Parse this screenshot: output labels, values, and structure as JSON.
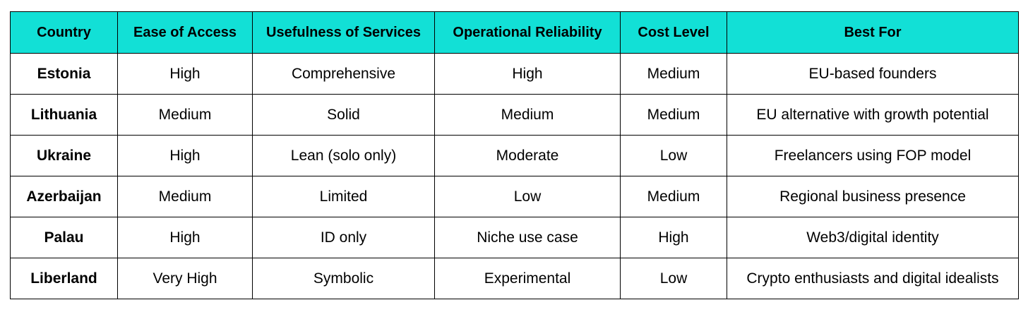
{
  "colors": {
    "header_background": "#12e0d6",
    "border": "#000000",
    "text": "#000000",
    "cell_background": "#ffffff"
  },
  "table": {
    "headers": [
      "Country",
      "Ease of Access",
      "Usefulness of Services",
      "Operational Reliability",
      "Cost Level",
      "Best For"
    ],
    "rows": [
      [
        "Estonia",
        "High",
        "Comprehensive",
        "High",
        "Medium",
        "EU-based founders"
      ],
      [
        "Lithuania",
        "Medium",
        "Solid",
        "Medium",
        "Medium",
        "EU alternative with growth potential"
      ],
      [
        "Ukraine",
        "High",
        "Lean (solo only)",
        "Moderate",
        "Low",
        "Freelancers using FOP model"
      ],
      [
        "Azerbaijan",
        "Medium",
        "Limited",
        "Low",
        "Medium",
        "Regional business presence"
      ],
      [
        "Palau",
        "High",
        "ID only",
        "Niche use case",
        "High",
        "Web3/digital identity"
      ],
      [
        "Liberland",
        "Very High",
        "Symbolic",
        "Experimental",
        "Low",
        "Crypto enthusiasts and digital idealists"
      ]
    ]
  }
}
